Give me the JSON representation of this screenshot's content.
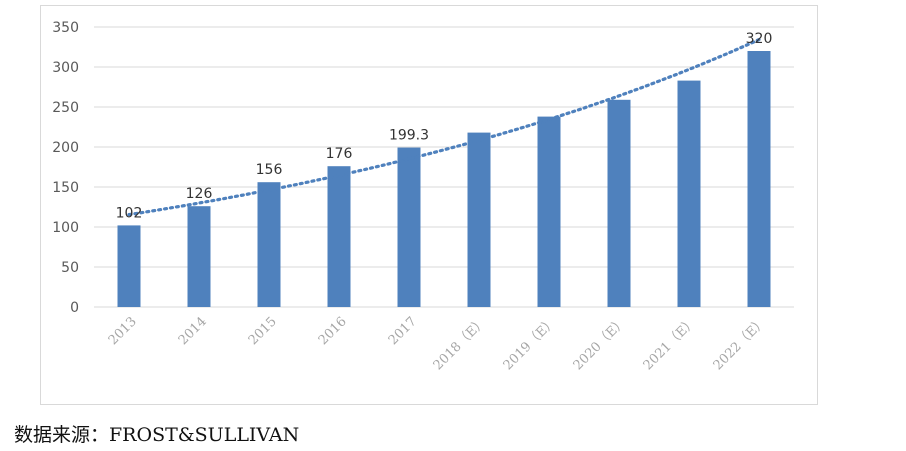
{
  "source_note": "数据来源：FROST&SULLIVAN",
  "colors": {
    "bar": "#4f81bd",
    "trend": "#4f81bd",
    "grid": "#d9d9d9",
    "axis_text": "#595959",
    "tick_x": "#a6a6a6"
  },
  "chart_data": {
    "type": "bar",
    "categories": [
      "2013",
      "2014",
      "2015",
      "2016",
      "2017",
      "2018（E）",
      "2019（E）",
      "2020（E）",
      "2021（E）",
      "2022（E）"
    ],
    "values": [
      102,
      126,
      156,
      176,
      199.3,
      218,
      238,
      259,
      283,
      320
    ],
    "data_labels": [
      "102",
      "126",
      "156",
      "176",
      "199.3",
      "",
      "",
      "",
      "",
      "320"
    ],
    "ylim": [
      0,
      350
    ],
    "yticks": [
      0,
      50,
      100,
      150,
      200,
      250,
      300,
      350
    ],
    "grid": true,
    "trendline": {
      "style": "dotted",
      "type": "exponential"
    },
    "title": "",
    "xlabel": "",
    "ylabel": ""
  }
}
